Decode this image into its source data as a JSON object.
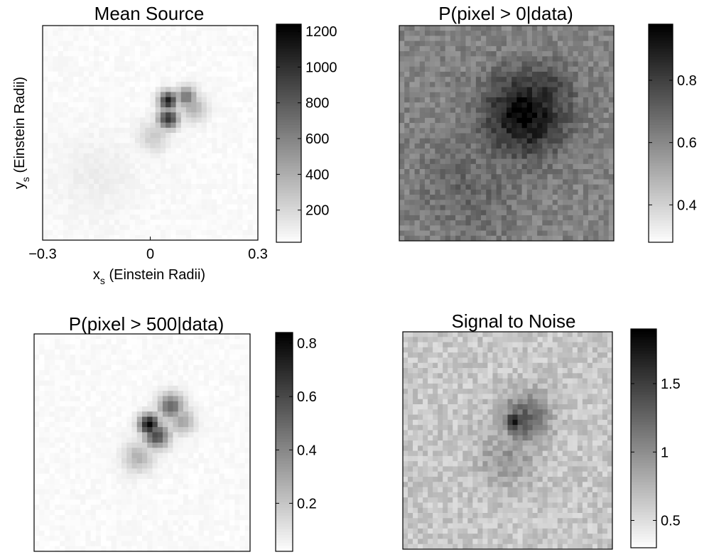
{
  "figure": {
    "xlabel": "x",
    "xlabel_sub": "s",
    "xlabel_rest": " (Einstein Radii)",
    "ylabel": "y",
    "ylabel_sub": "s",
    "ylabel_rest": " (Einstein Radii)"
  },
  "chart_data": [
    {
      "type": "heatmap",
      "title": "Mean Source",
      "colormap": "gray-reversed",
      "x_ticks": [
        "−0.3",
        "0",
        "0.3"
      ],
      "x_tick_values": [
        -0.3,
        0,
        0.3
      ],
      "xlim": [
        -0.3,
        0.3
      ],
      "ylim": [
        -0.3,
        0.3
      ],
      "colorbar": {
        "ticks": [
          "200",
          "400",
          "600",
          "800",
          "1000",
          "1200"
        ],
        "tick_values": [
          200,
          400,
          600,
          800,
          1000,
          1200
        ],
        "range": [
          20,
          1240
        ]
      },
      "features": [
        {
          "x": 0.05,
          "y": 0.09,
          "value": 1100,
          "spread": 0.018
        },
        {
          "x": 0.05,
          "y": 0.04,
          "value": 1000,
          "spread": 0.02
        },
        {
          "x": 0.1,
          "y": 0.1,
          "value": 700,
          "spread": 0.02
        },
        {
          "x": 0.12,
          "y": 0.07,
          "value": 400,
          "spread": 0.025
        },
        {
          "x": 0.01,
          "y": -0.01,
          "value": 250,
          "spread": 0.03
        },
        {
          "x": -0.15,
          "y": -0.12,
          "value": 80,
          "spread": 0.08
        }
      ]
    },
    {
      "type": "heatmap",
      "title": "P(pixel > 0|data)",
      "colormap": "gray-reversed",
      "xlim": [
        -0.3,
        0.3
      ],
      "ylim": [
        -0.3,
        0.3
      ],
      "colorbar": {
        "ticks": [
          "0.4",
          "0.6",
          "0.8"
        ],
        "tick_values": [
          0.4,
          0.6,
          0.8
        ],
        "range": [
          0.28,
          0.98
        ]
      },
      "background": 0.62,
      "features": [
        {
          "x": 0.05,
          "y": 0.05,
          "value": 0.97,
          "spread": 0.08
        },
        {
          "x": 0.1,
          "y": 0.1,
          "value": 0.85,
          "spread": 0.06
        },
        {
          "x": -0.1,
          "y": -0.15,
          "value": 0.7,
          "spread": 0.1
        }
      ]
    },
    {
      "type": "heatmap",
      "title": "P(pixel > 500|data)",
      "colormap": "gray-reversed",
      "xlim": [
        -0.3,
        0.3
      ],
      "ylim": [
        -0.3,
        0.3
      ],
      "colorbar": {
        "ticks": [
          "0.2",
          "0.4",
          "0.6",
          "0.8"
        ],
        "tick_values": [
          0.2,
          0.4,
          0.6,
          0.8
        ],
        "range": [
          0.02,
          0.84
        ]
      },
      "features": [
        {
          "x": 0.02,
          "y": 0.05,
          "value": 0.82,
          "spread": 0.02
        },
        {
          "x": 0.04,
          "y": 0.02,
          "value": 0.6,
          "spread": 0.025
        },
        {
          "x": 0.08,
          "y": 0.1,
          "value": 0.5,
          "spread": 0.025
        },
        {
          "x": 0.11,
          "y": 0.06,
          "value": 0.3,
          "spread": 0.025
        },
        {
          "x": -0.01,
          "y": -0.04,
          "value": 0.25,
          "spread": 0.03
        }
      ]
    },
    {
      "type": "heatmap",
      "title": "Signal to Noise",
      "colormap": "gray-reversed",
      "xlim": [
        -0.3,
        0.3
      ],
      "ylim": [
        -0.3,
        0.3
      ],
      "colorbar": {
        "ticks": [
          "0.5",
          "1",
          "1.5"
        ],
        "tick_values": [
          0.5,
          1,
          1.5
        ],
        "range": [
          0.3,
          1.9
        ]
      },
      "background": 0.65,
      "features": [
        {
          "x": 0.02,
          "y": 0.05,
          "value": 1.85,
          "spread": 0.02
        },
        {
          "x": 0.05,
          "y": 0.06,
          "value": 1.3,
          "spread": 0.05
        },
        {
          "x": 0.0,
          "y": -0.05,
          "value": 0.95,
          "spread": 0.06
        }
      ]
    }
  ]
}
